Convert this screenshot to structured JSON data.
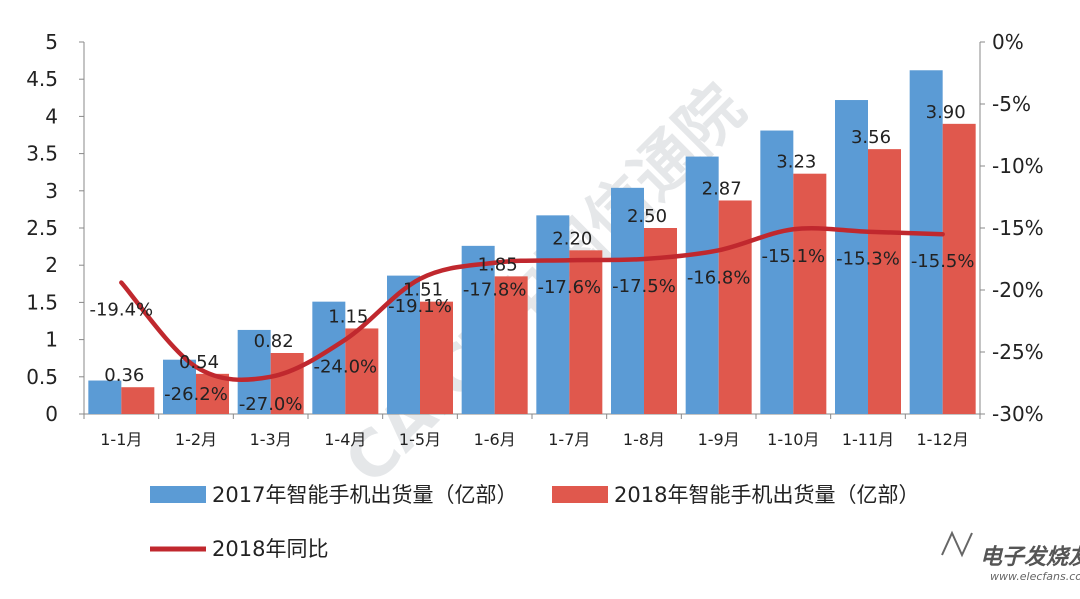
{
  "watermark": {
    "text": "CAICT中国信通院"
  },
  "brand": {
    "name": "电子发烧友",
    "url": "www.elecfans.com"
  },
  "chart_data": {
    "type": "bar",
    "categories": [
      "1-1月",
      "1-2月",
      "1-3月",
      "1-4月",
      "1-5月",
      "1-6月",
      "1-7月",
      "1-8月",
      "1-9月",
      "1-10月",
      "1-11月",
      "1-12月"
    ],
    "series": [
      {
        "name": "2017年智能手机出货量（亿部）",
        "type": "bar",
        "axis": "left",
        "color": "#5b9bd5",
        "values": [
          0.45,
          0.73,
          1.13,
          1.51,
          1.86,
          2.26,
          2.67,
          3.04,
          3.46,
          3.81,
          4.22,
          4.62
        ],
        "labels": []
      },
      {
        "name": "2018年智能手机出货量（亿部）",
        "type": "bar",
        "axis": "left",
        "color": "#e0584d",
        "values": [
          0.36,
          0.54,
          0.82,
          1.15,
          1.51,
          1.85,
          2.2,
          2.5,
          2.87,
          3.23,
          3.56,
          3.9
        ],
        "labels": [
          "0.36",
          "0.54",
          "0.82",
          "1.15",
          "1.51",
          "1.85",
          "2.20",
          "2.50",
          "2.87",
          "3.23",
          "3.56",
          "3.90"
        ]
      },
      {
        "name": "2018年同比",
        "type": "line",
        "axis": "right",
        "color": "#c0282e",
        "values": [
          -19.4,
          -26.2,
          -27.0,
          -24.0,
          -19.1,
          -17.8,
          -17.6,
          -17.5,
          -16.8,
          -15.1,
          -15.3,
          -15.5
        ],
        "labels": [
          "-19.4%",
          "-26.2%",
          "-27.0%",
          "-24.0%",
          "-19.1%",
          "-17.8%",
          "-17.6%",
          "-17.5%",
          "-16.8%",
          "-15.1%",
          "-15.3%",
          "-15.5%"
        ]
      }
    ],
    "y_left": {
      "min": 0,
      "max": 5,
      "ticks": [
        0,
        0.5,
        1,
        1.5,
        2,
        2.5,
        3,
        3.5,
        4,
        4.5,
        5
      ],
      "tick_labels": [
        "0",
        "0.5",
        "1",
        "1.5",
        "2",
        "2.5",
        "3",
        "3.5",
        "4",
        "4.5",
        "5"
      ]
    },
    "y_right": {
      "min": -30,
      "max": 0,
      "ticks": [
        0,
        -5,
        -10,
        -15,
        -20,
        -25,
        -30
      ],
      "tick_labels": [
        "0%",
        "-5%",
        "-10%",
        "-15%",
        "-20%",
        "-25%",
        "-30%"
      ]
    },
    "grid": false,
    "legend_position": "bottom-left"
  }
}
